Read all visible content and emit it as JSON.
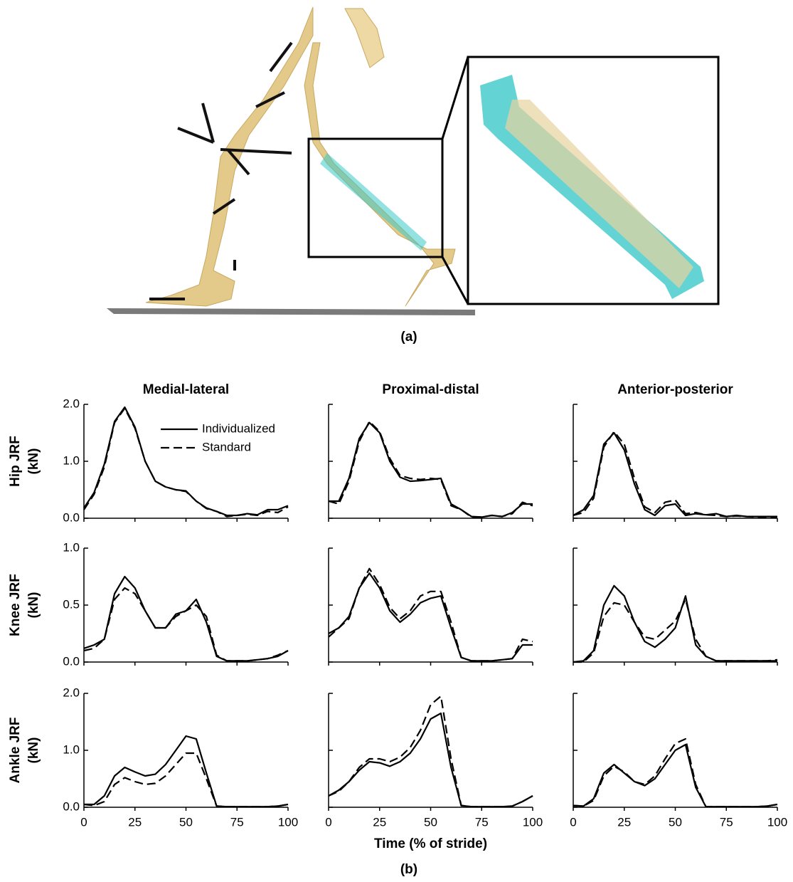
{
  "figure": {
    "panel_a_label": "(a)",
    "panel_b_label": "(b)"
  },
  "chart_data": [
    {
      "type": "line",
      "title": "Medial-lateral",
      "ylabel": [
        "Hip JRF",
        "(kN)"
      ],
      "legend": "upper right",
      "x": [
        0,
        5,
        10,
        15,
        20,
        25,
        30,
        35,
        40,
        45,
        50,
        55,
        60,
        65,
        70,
        75,
        80,
        85,
        90,
        95,
        100
      ],
      "series": [
        {
          "name": "Individualized",
          "color": "#000000",
          "dash": "solid",
          "values": [
            0.18,
            0.45,
            0.95,
            1.7,
            1.95,
            1.6,
            1.0,
            0.65,
            0.55,
            0.5,
            0.48,
            0.3,
            0.18,
            0.12,
            0.05,
            0.05,
            0.08,
            0.06,
            0.15,
            0.15,
            0.22
          ]
        },
        {
          "name": "Standard",
          "color": "#000000",
          "dash": "dashed",
          "values": [
            0.15,
            0.42,
            0.9,
            1.68,
            1.93,
            1.58,
            1.0,
            0.65,
            0.55,
            0.5,
            0.47,
            0.3,
            0.17,
            0.12,
            0.03,
            0.05,
            0.07,
            0.05,
            0.12,
            0.1,
            0.2
          ]
        }
      ],
      "xlim": [
        0,
        100
      ],
      "xticks": [
        0,
        25,
        50,
        75,
        100
      ],
      "show_xtick_labels": false,
      "ylim": [
        0,
        2
      ],
      "yticks": [
        {
          "value": 0,
          "label": "0.0"
        },
        {
          "value": 1,
          "label": "1.0"
        },
        {
          "value": 2,
          "label": "2.0"
        }
      ],
      "show_ytick_labels": true
    },
    {
      "type": "line",
      "title": "Proximal-distal",
      "x": [
        0,
        5,
        10,
        15,
        20,
        25,
        30,
        35,
        40,
        45,
        50,
        55,
        60,
        65,
        70,
        75,
        80,
        85,
        90,
        95,
        100
      ],
      "series": [
        {
          "color": "#000000",
          "dash": "solid",
          "values": [
            0.3,
            0.3,
            0.7,
            1.4,
            1.68,
            1.5,
            1.0,
            0.72,
            0.65,
            0.66,
            0.68,
            0.7,
            0.25,
            0.15,
            0.03,
            0.02,
            0.05,
            0.03,
            0.1,
            0.25,
            0.25
          ]
        },
        {
          "color": "#000000",
          "dash": "dashed",
          "values": [
            0.3,
            0.25,
            0.65,
            1.35,
            1.7,
            1.52,
            1.05,
            0.75,
            0.7,
            0.68,
            0.7,
            0.68,
            0.22,
            0.15,
            0.02,
            0.02,
            0.05,
            0.03,
            0.08,
            0.28,
            0.22
          ]
        }
      ],
      "xlim": [
        0,
        100
      ],
      "xticks": [
        0,
        25,
        50,
        75,
        100
      ],
      "show_xtick_labels": false,
      "ylim": [
        0,
        2
      ],
      "yticks": [
        0,
        1,
        2
      ],
      "show_ytick_labels": false
    },
    {
      "type": "line",
      "title": "Anterior-posterior",
      "x": [
        0,
        5,
        10,
        15,
        20,
        25,
        30,
        35,
        40,
        45,
        50,
        55,
        60,
        65,
        70,
        75,
        80,
        85,
        90,
        95,
        100
      ],
      "series": [
        {
          "color": "#000000",
          "dash": "solid",
          "values": [
            0.05,
            0.15,
            0.4,
            1.3,
            1.5,
            1.2,
            0.6,
            0.15,
            0.05,
            0.22,
            0.25,
            0.05,
            0.08,
            0.06,
            0.08,
            0.03,
            0.05,
            0.03,
            0.03,
            0.03,
            0.03
          ]
        },
        {
          "color": "#000000",
          "dash": "dashed",
          "values": [
            0.05,
            0.1,
            0.35,
            1.25,
            1.52,
            1.3,
            0.7,
            0.2,
            0.1,
            0.28,
            0.32,
            0.08,
            0.1,
            0.06,
            0.05,
            0.03,
            0.04,
            0.03,
            0.02,
            0.02,
            0.02
          ]
        }
      ],
      "xlim": [
        0,
        100
      ],
      "xticks": [
        0,
        25,
        50,
        75,
        100
      ],
      "show_xtick_labels": false,
      "ylim": [
        0,
        2
      ],
      "yticks": [
        0,
        1,
        2
      ],
      "show_ytick_labels": false
    },
    {
      "type": "line",
      "ylabel": [
        "Knee JRF",
        "(kN)"
      ],
      "x": [
        0,
        5,
        10,
        15,
        20,
        25,
        30,
        35,
        40,
        45,
        50,
        55,
        60,
        65,
        70,
        75,
        80,
        85,
        90,
        95,
        100
      ],
      "series": [
        {
          "color": "#000000",
          "dash": "solid",
          "values": [
            0.12,
            0.15,
            0.2,
            0.6,
            0.75,
            0.65,
            0.45,
            0.3,
            0.3,
            0.42,
            0.45,
            0.55,
            0.35,
            0.05,
            0.01,
            0.01,
            0.01,
            0.02,
            0.03,
            0.05,
            0.1
          ]
        },
        {
          "color": "#000000",
          "dash": "dashed",
          "values": [
            0.1,
            0.12,
            0.2,
            0.55,
            0.65,
            0.6,
            0.45,
            0.3,
            0.3,
            0.4,
            0.45,
            0.5,
            0.4,
            0.06,
            0.01,
            0.01,
            0.01,
            0.02,
            0.03,
            0.06,
            0.1
          ]
        }
      ],
      "xlim": [
        0,
        100
      ],
      "xticks": [
        0,
        25,
        50,
        75,
        100
      ],
      "show_xtick_labels": false,
      "ylim": [
        0,
        1
      ],
      "yticks": [
        {
          "value": 0,
          "label": "0.0"
        },
        0.5,
        {
          "value": 1,
          "label": "1.0"
        }
      ],
      "show_ytick_labels": true
    },
    {
      "type": "line",
      "x": [
        0,
        5,
        10,
        15,
        20,
        25,
        30,
        35,
        40,
        45,
        50,
        55,
        60,
        65,
        70,
        75,
        80,
        85,
        90,
        95,
        100
      ],
      "series": [
        {
          "color": "#000000",
          "dash": "solid",
          "values": [
            0.25,
            0.3,
            0.4,
            0.65,
            0.78,
            0.65,
            0.45,
            0.35,
            0.42,
            0.52,
            0.56,
            0.58,
            0.3,
            0.04,
            0.01,
            0.01,
            0.01,
            0.02,
            0.03,
            0.15,
            0.15
          ]
        },
        {
          "color": "#000000",
          "dash": "dashed",
          "values": [
            0.22,
            0.3,
            0.38,
            0.65,
            0.82,
            0.68,
            0.48,
            0.38,
            0.45,
            0.58,
            0.62,
            0.62,
            0.35,
            0.04,
            0.01,
            0.01,
            0.01,
            0.02,
            0.03,
            0.2,
            0.18
          ]
        }
      ],
      "xlim": [
        0,
        100
      ],
      "xticks": [
        0,
        25,
        50,
        75,
        100
      ],
      "show_xtick_labels": false,
      "ylim": [
        0,
        1
      ],
      "yticks": [
        0,
        0.5,
        1
      ],
      "show_ytick_labels": false
    },
    {
      "type": "line",
      "x": [
        0,
        5,
        10,
        15,
        20,
        25,
        30,
        35,
        40,
        45,
        50,
        55,
        60,
        65,
        70,
        75,
        80,
        85,
        90,
        95,
        100
      ],
      "series": [
        {
          "color": "#000000",
          "dash": "solid",
          "values": [
            0.0,
            0.01,
            0.1,
            0.5,
            0.67,
            0.58,
            0.35,
            0.18,
            0.13,
            0.2,
            0.3,
            0.58,
            0.15,
            0.05,
            0.01,
            0.01,
            0.01,
            0.01,
            0.01,
            0.01,
            0.01
          ]
        },
        {
          "color": "#000000",
          "dash": "dashed",
          "values": [
            0.0,
            0.0,
            0.08,
            0.4,
            0.52,
            0.5,
            0.35,
            0.22,
            0.2,
            0.28,
            0.36,
            0.55,
            0.2,
            0.05,
            0.01,
            0.01,
            0.01,
            0.01,
            0.01,
            0.01,
            0.02
          ]
        }
      ],
      "xlim": [
        0,
        100
      ],
      "xticks": [
        0,
        25,
        50,
        75,
        100
      ],
      "show_xtick_labels": false,
      "ylim": [
        0,
        1
      ],
      "yticks": [
        0,
        0.5,
        1
      ],
      "show_ytick_labels": false
    },
    {
      "type": "line",
      "ylabel": [
        "Ankle JRF",
        "(kN)"
      ],
      "x": [
        0,
        5,
        10,
        15,
        20,
        25,
        30,
        35,
        40,
        45,
        50,
        55,
        60,
        65,
        70,
        75,
        80,
        85,
        90,
        95,
        100
      ],
      "series": [
        {
          "color": "#000000",
          "dash": "solid",
          "values": [
            0.05,
            0.05,
            0.2,
            0.55,
            0.7,
            0.62,
            0.55,
            0.58,
            0.75,
            1.0,
            1.25,
            1.2,
            0.6,
            0.02,
            0.01,
            0.01,
            0.01,
            0.01,
            0.01,
            0.02,
            0.05
          ]
        },
        {
          "color": "#000000",
          "dash": "dashed",
          "values": [
            0.05,
            0.03,
            0.1,
            0.4,
            0.52,
            0.45,
            0.4,
            0.42,
            0.55,
            0.75,
            0.95,
            0.95,
            0.5,
            0.02,
            0.01,
            0.01,
            0.01,
            0.01,
            0.01,
            0.02,
            0.05
          ]
        }
      ],
      "xlim": [
        0,
        100
      ],
      "xticks": [
        0,
        25,
        50,
        75,
        100
      ],
      "show_xtick_labels": true,
      "ylim": [
        0,
        2
      ],
      "yticks": [
        {
          "value": 0,
          "label": "0.0"
        },
        {
          "value": 1,
          "label": "1.0"
        },
        {
          "value": 2,
          "label": "2.0"
        }
      ],
      "show_ytick_labels": true
    },
    {
      "type": "line",
      "xlabel": "Time (% of stride)",
      "x": [
        0,
        5,
        10,
        15,
        20,
        25,
        30,
        35,
        40,
        45,
        50,
        55,
        60,
        65,
        70,
        75,
        80,
        85,
        90,
        95,
        100
      ],
      "series": [
        {
          "color": "#000000",
          "dash": "solid",
          "values": [
            0.2,
            0.3,
            0.45,
            0.65,
            0.8,
            0.78,
            0.72,
            0.8,
            0.95,
            1.2,
            1.55,
            1.65,
            0.7,
            0.03,
            0.01,
            0.01,
            0.01,
            0.01,
            0.02,
            0.1,
            0.2
          ]
        },
        {
          "color": "#000000",
          "dash": "dashed",
          "values": [
            0.2,
            0.28,
            0.45,
            0.7,
            0.85,
            0.85,
            0.8,
            0.88,
            1.05,
            1.35,
            1.8,
            1.95,
            0.85,
            0.03,
            0.01,
            0.01,
            0.01,
            0.01,
            0.02,
            0.1,
            0.2
          ]
        }
      ],
      "xlim": [
        0,
        100
      ],
      "xticks": [
        0,
        25,
        50,
        75,
        100
      ],
      "show_xtick_labels": true,
      "ylim": [
        0,
        2
      ],
      "yticks": [
        0,
        1,
        2
      ],
      "show_ytick_labels": false
    },
    {
      "type": "line",
      "x": [
        0,
        5,
        10,
        15,
        20,
        25,
        30,
        35,
        40,
        45,
        50,
        55,
        60,
        65,
        70,
        75,
        80,
        85,
        90,
        95,
        100
      ],
      "series": [
        {
          "color": "#000000",
          "dash": "solid",
          "values": [
            0.03,
            0.02,
            0.15,
            0.6,
            0.75,
            0.6,
            0.45,
            0.38,
            0.5,
            0.75,
            1.0,
            1.1,
            0.35,
            0.01,
            0.01,
            0.01,
            0.01,
            0.01,
            0.01,
            0.02,
            0.05
          ]
        },
        {
          "color": "#000000",
          "dash": "dashed",
          "values": [
            0.03,
            0.02,
            0.12,
            0.55,
            0.72,
            0.62,
            0.45,
            0.4,
            0.55,
            0.85,
            1.12,
            1.2,
            0.4,
            0.01,
            0.01,
            0.01,
            0.01,
            0.01,
            0.01,
            0.02,
            0.05
          ]
        }
      ],
      "xlim": [
        0,
        100
      ],
      "xticks": [
        0,
        25,
        50,
        75,
        100
      ],
      "show_xtick_labels": true,
      "ylim": [
        0,
        2
      ],
      "yticks": [
        0,
        1,
        2
      ],
      "show_ytick_labels": false
    }
  ]
}
